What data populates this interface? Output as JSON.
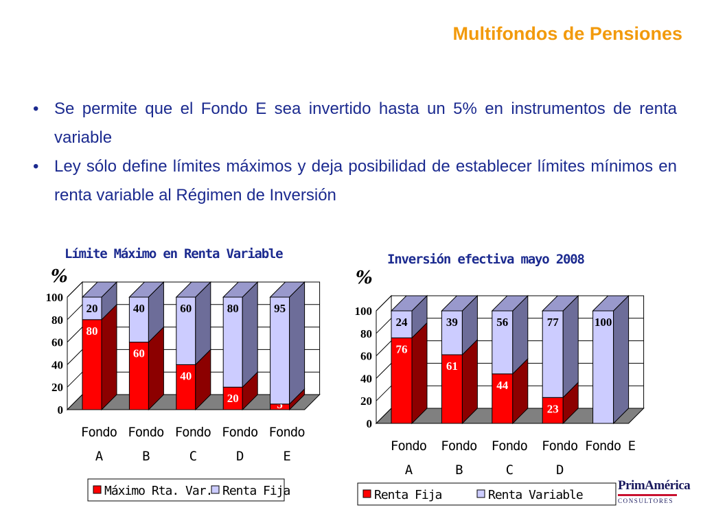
{
  "slide": {
    "title": "Multifondos de Pensiones",
    "bullets": [
      "Se permite que el Fondo E sea invertido hasta un 5% en instrumentos de renta variable",
      "Ley sólo define límites máximos y deja posibilidad de establecer límites mínimos en renta variable al Régimen de Inversión"
    ],
    "bullet_glyph": "•",
    "logo": {
      "name": "PrimAmérica",
      "sub": "CONSULTORES"
    }
  },
  "colors": {
    "title": "#f29a0c",
    "bullet_text": "#1b2a8f",
    "red_front": "#ff0000",
    "red_side": "#8c0000",
    "red_top": "#cc0000",
    "lavender_front": "#ccccff",
    "lavender_side": "#6d6d99",
    "lavender_top": "#9999cc",
    "floor": "#808080"
  },
  "chart_data": [
    {
      "type": "bar",
      "stacked": true,
      "three_d": true,
      "title": "Límite Máximo en Renta Variable",
      "ylabel": "%",
      "ylim": [
        0,
        100
      ],
      "yticks": [
        0,
        20,
        40,
        60,
        80,
        100
      ],
      "grid": true,
      "legend_position": "bottom",
      "categories": [
        [
          "Fondo",
          "A"
        ],
        [
          "Fondo",
          "B"
        ],
        [
          "Fondo",
          "C"
        ],
        [
          "Fondo",
          "D"
        ],
        [
          "Fondo",
          "E"
        ]
      ],
      "series": [
        {
          "name": "Máximo Rta. Var.",
          "color": "red",
          "values": [
            80,
            60,
            40,
            20,
            5
          ]
        },
        {
          "name": "Renta Fija",
          "color": "lavender",
          "values": [
            20,
            40,
            60,
            80,
            95
          ]
        }
      ]
    },
    {
      "type": "bar",
      "stacked": true,
      "three_d": true,
      "title": "Inversión efectiva mayo 2008",
      "ylabel": "%",
      "ylim": [
        0,
        100
      ],
      "yticks": [
        0,
        20,
        40,
        60,
        80,
        100
      ],
      "grid": true,
      "legend_position": "bottom",
      "categories": [
        [
          "Fondo",
          "A"
        ],
        [
          "Fondo",
          "B"
        ],
        [
          "Fondo",
          "C"
        ],
        [
          "Fondo",
          "D"
        ],
        [
          "Fondo E",
          ""
        ]
      ],
      "series": [
        {
          "name": "Renta Fija",
          "color": "red",
          "values": [
            76,
            61,
            44,
            23,
            0
          ]
        },
        {
          "name": "Renta Variable",
          "color": "lavender",
          "values": [
            24,
            39,
            56,
            77,
            100
          ]
        }
      ]
    }
  ]
}
